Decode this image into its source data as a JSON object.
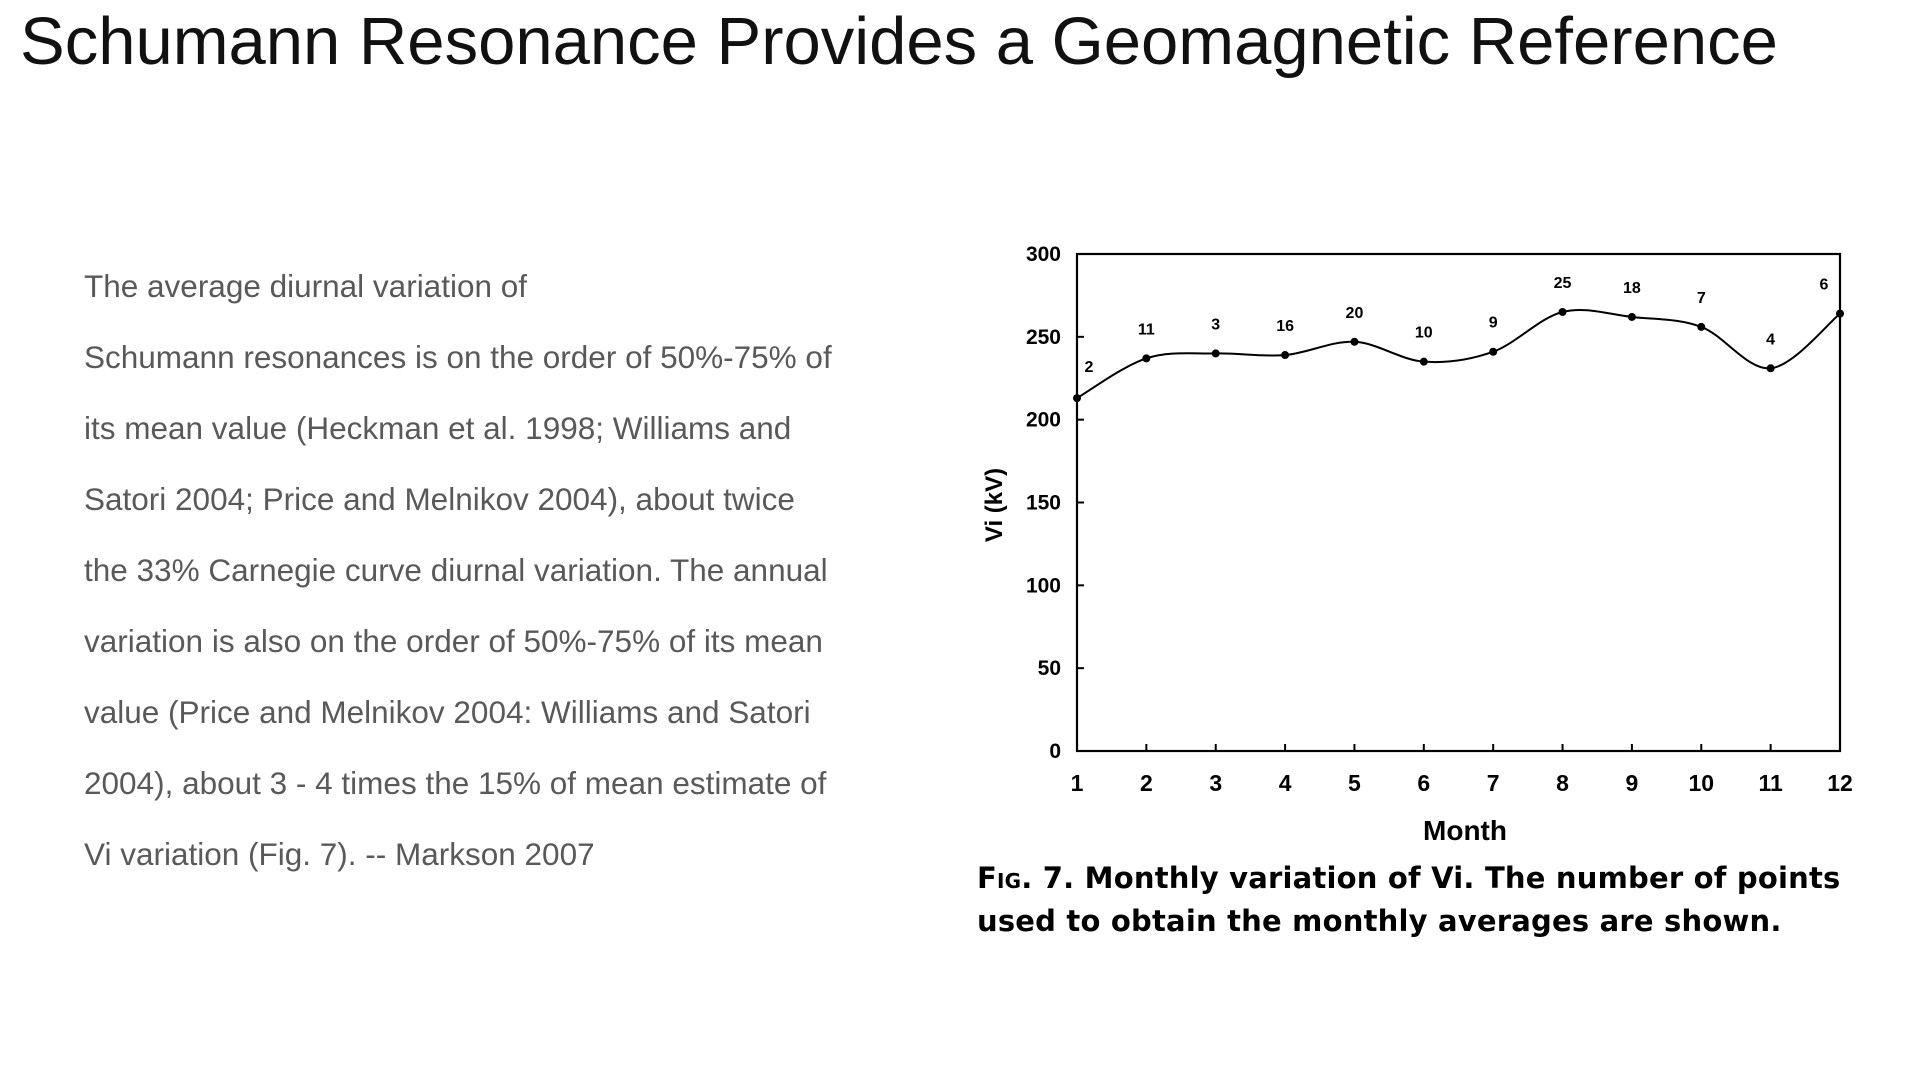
{
  "slide": {
    "title": "Schumann Resonance Provides a Geomagnetic Reference",
    "body_lines": [
      "The average diurnal variation of",
      "Schumann resonances is on the order of 50%-75% of",
      "its mean value (Heckman et al. 1998; Williams and",
      "Satori 2004; Price and Melnikov 2004), about twice",
      "the 33% Carnegie curve diurnal variation. The annual",
      "variation is also on the order of 50%-75% of its mean",
      "value (Price and Melnikov 2004: Williams and Satori",
      "2004), about 3 - 4 times the 15% of mean estimate of",
      "Vi variation (Fig. 7).  -- Markson 2007"
    ]
  },
  "figure": {
    "caption_label": "Fig. 7.",
    "caption_text": " Monthly variation of Vi. The number of points used to obtain the monthly averages are shown."
  },
  "chart_data": {
    "type": "line",
    "xlabel": "Month",
    "ylabel": "Vi (kV)",
    "x": [
      1,
      2,
      3,
      4,
      5,
      6,
      7,
      8,
      9,
      10,
      11,
      12
    ],
    "y": [
      213,
      237,
      240,
      239,
      247,
      235,
      241,
      265,
      262,
      256,
      231,
      264
    ],
    "point_counts": [
      "2",
      "11",
      "3",
      "16",
      "20",
      "10",
      "9",
      "25",
      "18",
      "7",
      "4",
      "6"
    ],
    "x_ticks": [
      "1",
      "2",
      "3",
      "4",
      "5",
      "6",
      "7",
      "8",
      "9",
      "10",
      "11",
      "12"
    ],
    "y_ticks": [
      "0",
      "50",
      "100",
      "150",
      "200",
      "250",
      "300"
    ],
    "xlim": [
      1,
      12
    ],
    "ylim": [
      0,
      300
    ],
    "grid": false,
    "line_color": "#000000"
  }
}
